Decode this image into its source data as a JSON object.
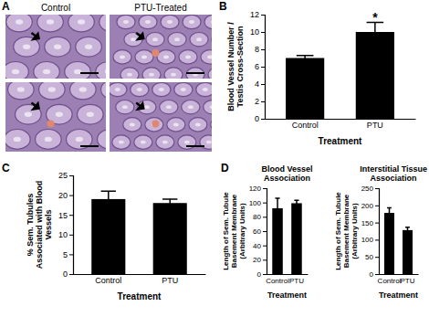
{
  "panel_a": {
    "panel": "A",
    "labels": [
      "Control",
      "PTU-Treated"
    ]
  },
  "chart_data": [
    {
      "type": "bar",
      "panel": "B",
      "categories": [
        "Control",
        "PTU"
      ],
      "values": [
        7.0,
        10.0
      ],
      "errors": [
        0.3,
        1.1
      ],
      "color": "#000000",
      "x_label": "Treatment",
      "y_label": "Blood Vessel Number / Testis Cross-Section",
      "ylim": [
        0,
        12
      ],
      "yticks": [
        0,
        2,
        4,
        6,
        8,
        10,
        12
      ],
      "annotations": [
        {
          "text": "*",
          "category": "PTU"
        }
      ]
    },
    {
      "type": "bar",
      "panel": "C",
      "categories": [
        "Control",
        "PTU"
      ],
      "values": [
        19,
        18
      ],
      "errors": [
        2,
        1
      ],
      "color": "#000000",
      "x_label": "Treatment",
      "y_label": "% Sem. Tubules Associated with Blood Vessels",
      "ylim": [
        0,
        25
      ],
      "yticks": [
        0,
        5,
        10,
        15,
        20,
        25
      ]
    },
    {
      "type": "bar",
      "panel": "D",
      "title": "Blood Vessel Association",
      "categories": [
        "Control",
        "PTU"
      ],
      "values": [
        92,
        99
      ],
      "errors": [
        14,
        4
      ],
      "color": "#000000",
      "x_label": "Treatment",
      "y_label": "Length of Sem. Tubule Basement Membrane (Arbitrary Units)",
      "ylim": [
        0,
        120
      ],
      "yticks": [
        0,
        20,
        40,
        60,
        80,
        100,
        120
      ]
    },
    {
      "type": "bar",
      "title": "Interstitial Tissue Association",
      "categories": [
        "Control",
        "PTU"
      ],
      "values": [
        178,
        128
      ],
      "errors": [
        15,
        8
      ],
      "color": "#000000",
      "x_label": "Treatment",
      "y_label": "Length of Sem. Tubule Basement Membrane (Arbitrary Units)",
      "ylim": [
        0,
        250
      ],
      "yticks": [
        0,
        50,
        100,
        150,
        200,
        250
      ]
    }
  ]
}
